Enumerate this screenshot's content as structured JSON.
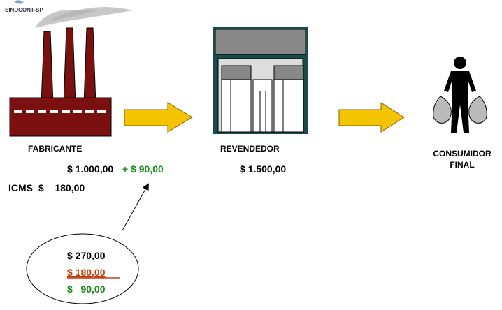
{
  "logo": "SINDCONT-SP",
  "nodes": [
    {
      "label": "FABRICANTE",
      "price": "$ 1.000,00",
      "added": "+ $ 90,00",
      "tax_label": "ICMS",
      "tax_value": "$    180,00"
    },
    {
      "label": "REVENDEDOR",
      "price": "$ 1.500,00"
    },
    {
      "label": [
        "CONSUMIDOR",
        "FINAL"
      ]
    }
  ],
  "callout": {
    "total": "$ 270,00",
    "minus": "$ 180,00",
    "result": "$   90,00"
  }
}
